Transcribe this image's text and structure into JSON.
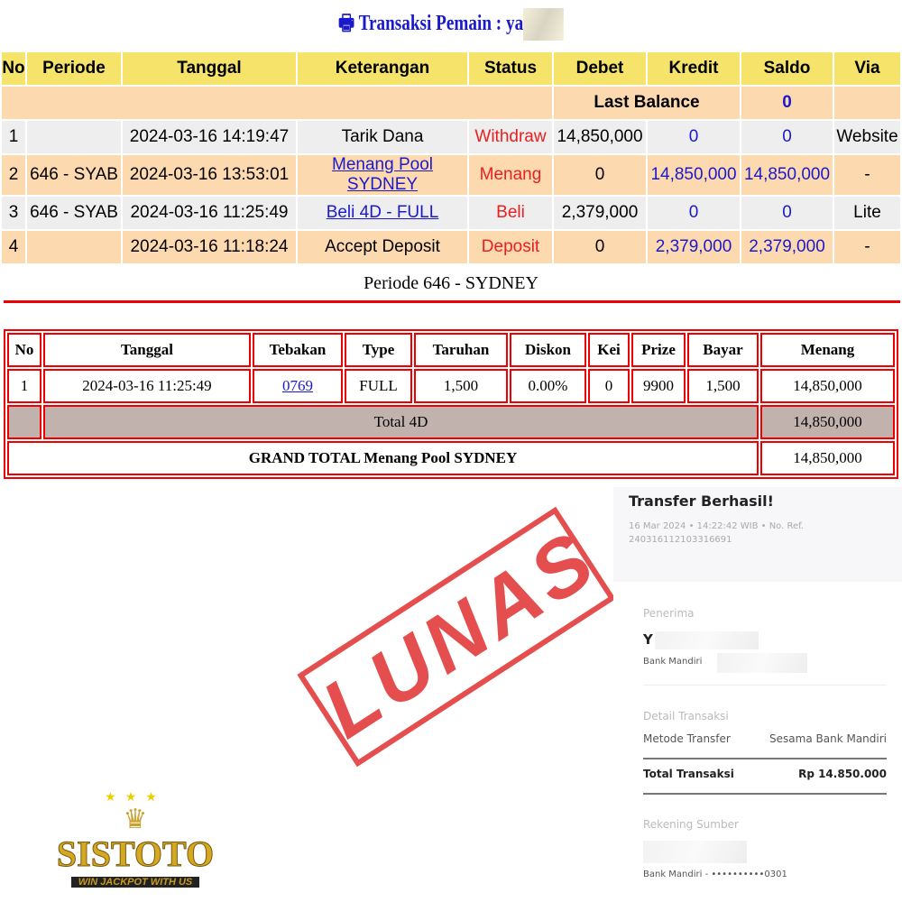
{
  "title": "Transaksi  Pemain : ya",
  "ledger": {
    "headers": [
      "No",
      "Periode",
      "Tanggal",
      "Keterangan",
      "Status",
      "Debet",
      "Kredit",
      "Saldo",
      "Via"
    ],
    "last_balance_label": "Last Balance",
    "last_balance": "0",
    "rows": [
      {
        "no": "1",
        "periode": "",
        "tanggal": "2024-03-16 14:19:47",
        "ket": "Tarik Dana",
        "status": "Withdraw",
        "debet": "14,850,000",
        "kredit": "0",
        "saldo": "0",
        "via": "Website"
      },
      {
        "no": "2",
        "periode": "646 - SYAB",
        "tanggal": "2024-03-16 13:53:01",
        "ket": "Menang Pool SYDNEY",
        "status": "Menang",
        "debet": "0",
        "kredit": "14,850,000",
        "saldo": "14,850,000",
        "via": "-"
      },
      {
        "no": "3",
        "periode": "646 - SYAB",
        "tanggal": "2024-03-16 11:25:49",
        "ket": "Beli 4D - FULL",
        "status": "Beli",
        "debet": "2,379,000",
        "kredit": "0",
        "saldo": "0",
        "via": "Lite"
      },
      {
        "no": "4",
        "periode": "",
        "tanggal": "2024-03-16 11:18:24",
        "ket": "Accept Deposit",
        "status": "Deposit",
        "debet": "0",
        "kredit": "2,379,000",
        "saldo": "2,379,000",
        "via": "-"
      }
    ]
  },
  "periode": "Periode 646 - SYDNEY",
  "bets": {
    "headers": [
      "No",
      "Tanggal",
      "Tebakan",
      "Type",
      "Taruhan",
      "Diskon",
      "Kei",
      "Prize",
      "Bayar",
      "Menang"
    ],
    "row": {
      "no": "1",
      "tanggal": "2024-03-16 11:25:49",
      "tebakan": "0769",
      "type": "FULL",
      "taruhan": "1,500",
      "diskon": "0.00%",
      "kei": "0",
      "prize": "9900",
      "bayar": "1,500",
      "menang": "14,850,000"
    },
    "total_label": "Total 4D",
    "total": "14,850,000",
    "grand_label": "GRAND TOTAL  Menang Pool SYDNEY",
    "grand": "14,850,000"
  },
  "stamp": "LUNAS",
  "receipt": {
    "title": "Transfer Berhasil!",
    "meta": "16 Mar 2024 • 14:22:42 WIB • No. Ref. 240316112103316691",
    "penerima_label": "Penerima",
    "penerima_initial": "Y",
    "bank": "Bank Mandiri",
    "detail_label": "Detail Transaksi",
    "metode_label": "Metode Transfer",
    "metode": "Sesama Bank Mandiri",
    "total_label": "Total Transaksi",
    "total": "Rp 14.850.000",
    "sumber_label": "Rekening Sumber",
    "sumber": "Bank Mandiri - ••••••••••0301"
  },
  "logo": {
    "name": "SISTOTO",
    "tagline": "WIN JACKPOT WITH US"
  },
  "colors": {
    "header": "#f5e36a",
    "peach": "#fdd9b0",
    "red": "#e82020",
    "blue": "#1a1acc"
  }
}
